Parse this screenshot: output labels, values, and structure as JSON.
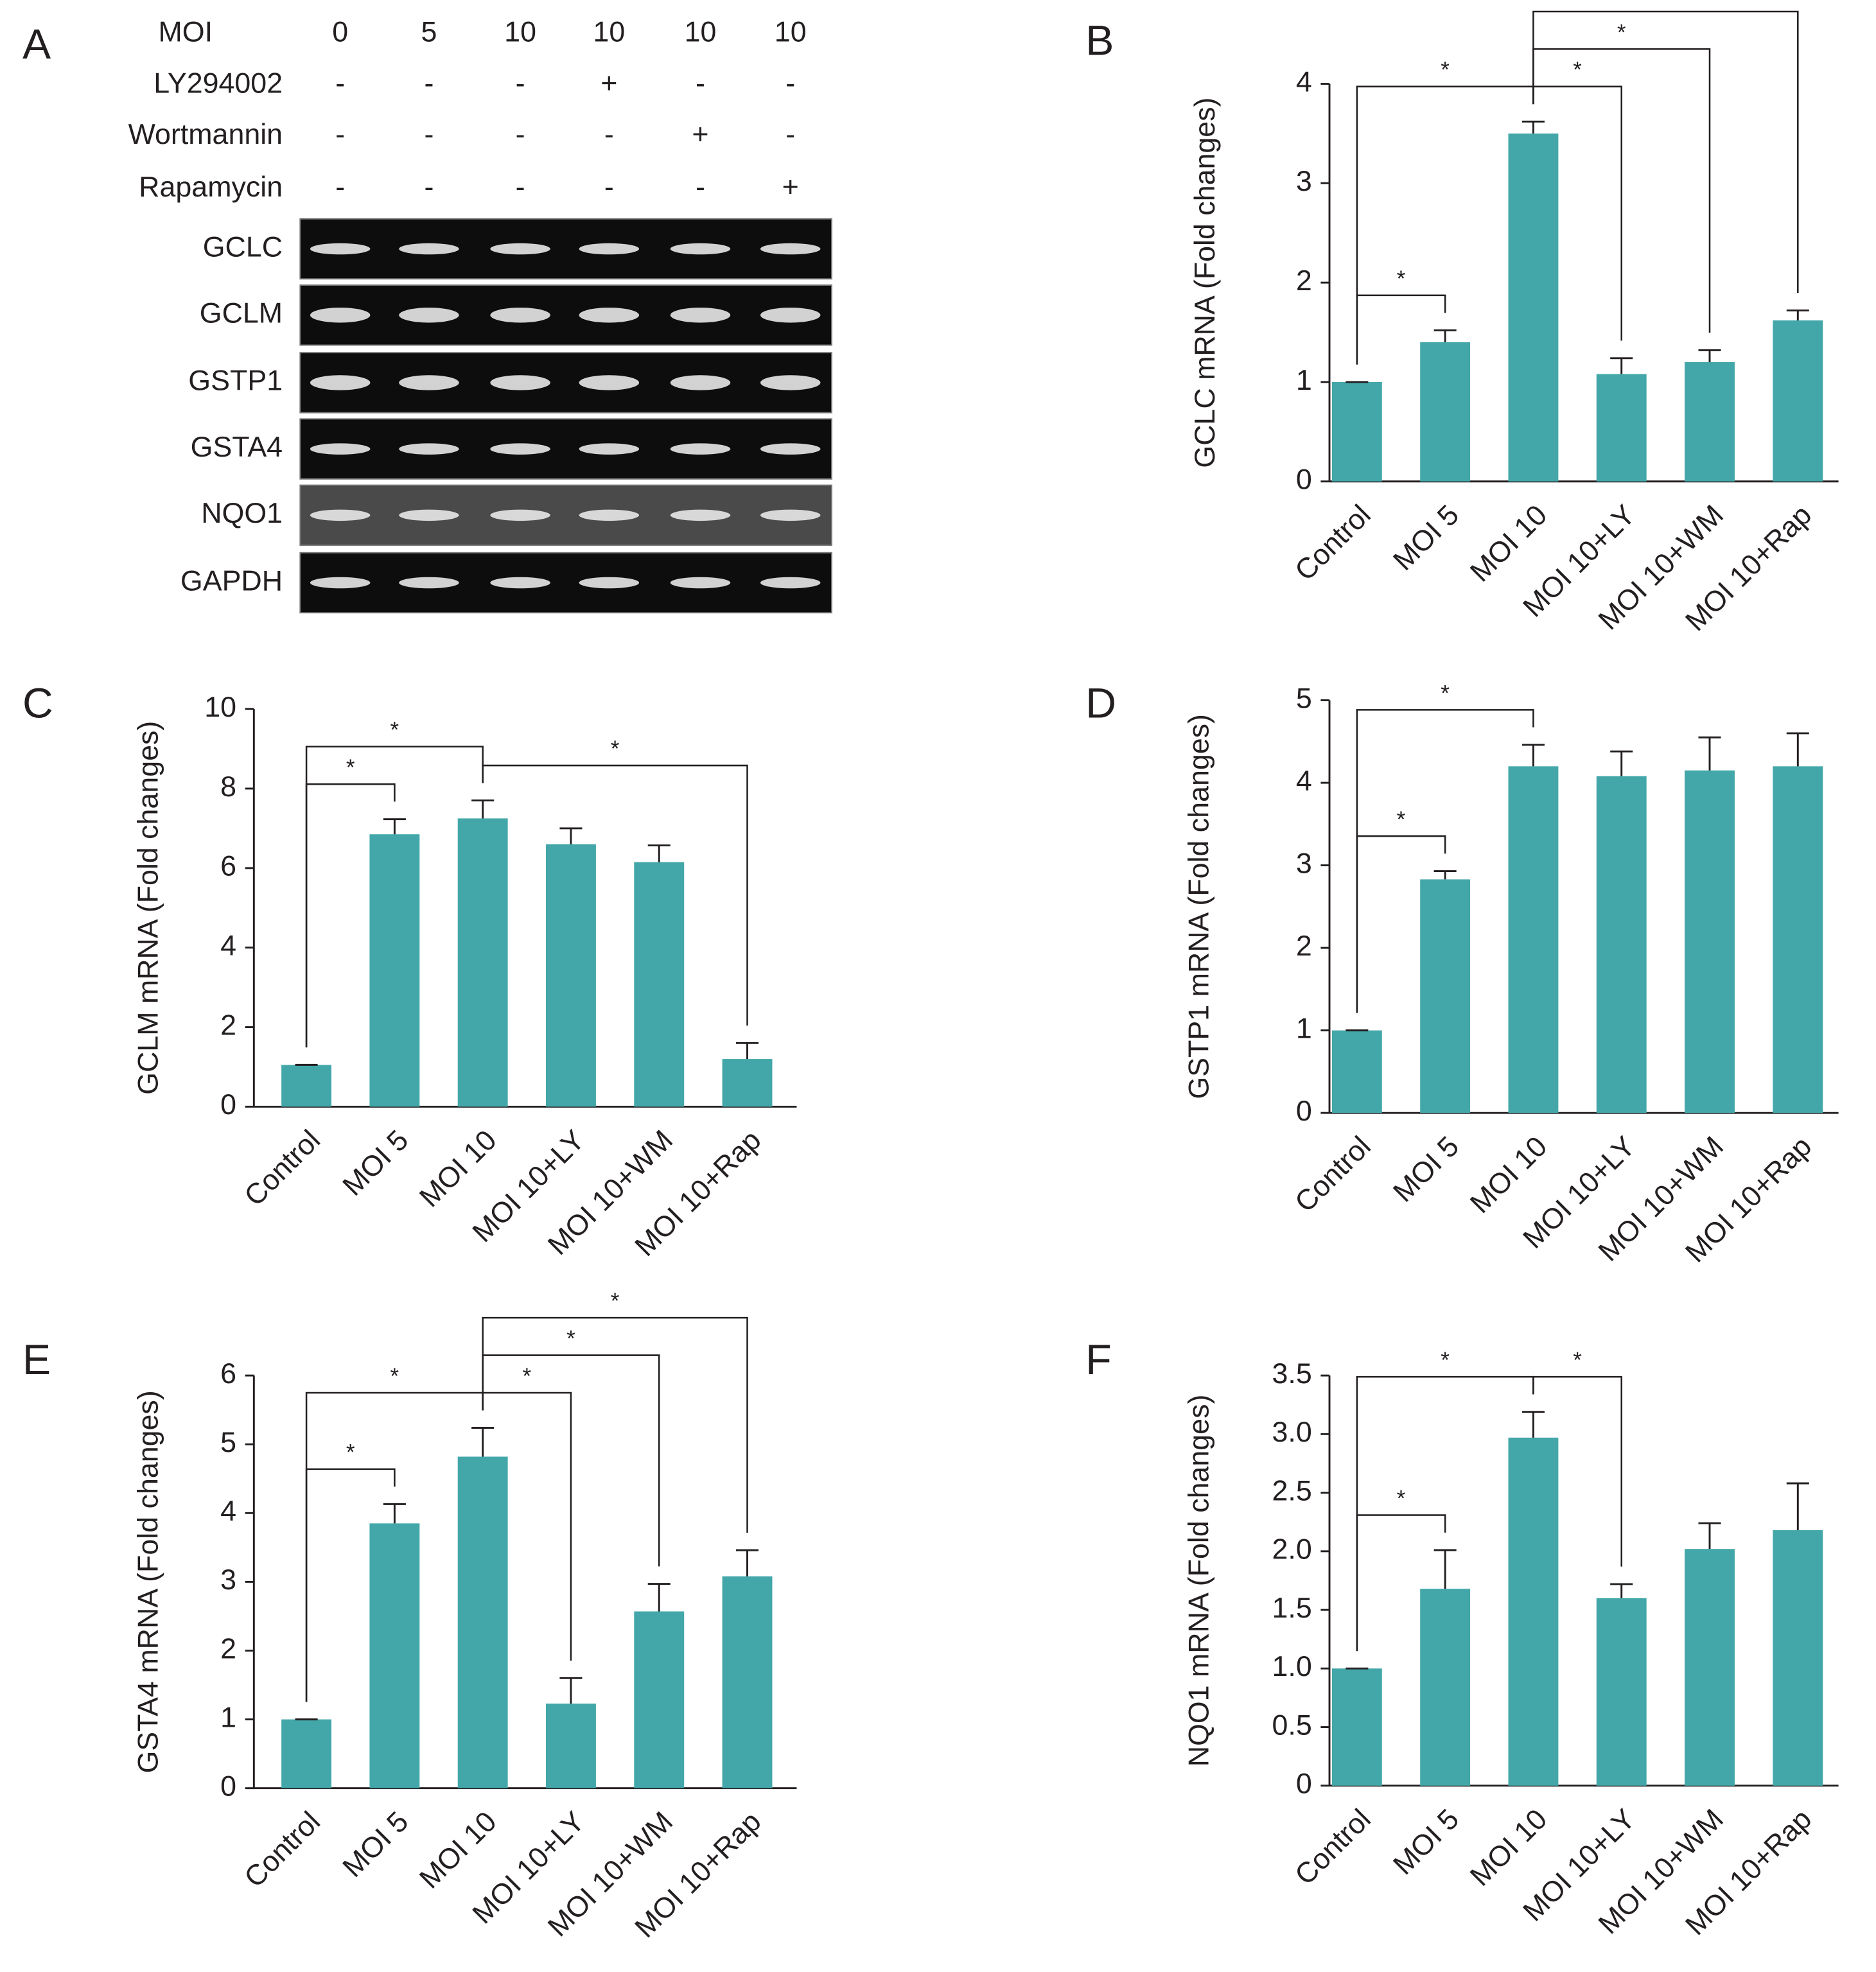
{
  "panel_a": {
    "panel_label": "A",
    "conditions": [
      {
        "name": "MOI",
        "values": [
          0,
          5,
          10,
          10,
          10,
          10
        ]
      },
      {
        "name": "LY294002",
        "values": [
          "-",
          "-",
          "-",
          "+",
          "-",
          "-"
        ]
      },
      {
        "name": "Wortmannin",
        "values": [
          "-",
          "-",
          "-",
          "-",
          "+",
          "-"
        ]
      },
      {
        "name": "Rapamycin",
        "values": [
          "-",
          "-",
          "-",
          "-",
          "-",
          "+"
        ]
      }
    ],
    "rows": [
      "GCLC",
      "GCLM",
      "GSTP1",
      "GSTA4",
      "NQO1",
      "GAPDH"
    ]
  },
  "chart_data": [
    {
      "type": "bar",
      "panel_label": "B",
      "ylabel": "GCLC mRNA (Fold changes)",
      "categories": [
        "Control",
        "MOI 5",
        "MOI 10",
        "MOI 10+LY",
        "MOI 10+WM",
        "MOI 10+Rap"
      ],
      "values": [
        1,
        1.4,
        3.5,
        1.08,
        1.2,
        1.62
      ],
      "errors": [
        0,
        0.12,
        0.12,
        0.16,
        0.12,
        0.1
      ],
      "color": "#43a7a9",
      "ylim": [
        0,
        4
      ],
      "yticks": [
        0,
        1,
        2,
        3,
        4
      ],
      "significance": [
        {
          "from": 0,
          "to": 1,
          "label": "*"
        },
        {
          "from": 0,
          "to": 2,
          "label": "*"
        },
        {
          "from": 2,
          "to": 3,
          "label": "*"
        },
        {
          "from": 2,
          "to": 4,
          "label": "*"
        },
        {
          "from": 2,
          "to": 5,
          "label": "*"
        }
      ]
    },
    {
      "type": "bar",
      "panel_label": "C",
      "ylabel": "GCLM mRNA (Fold changes)",
      "categories": [
        "Control",
        "MOI 5",
        "MOI 10",
        "MOI 10+LY",
        "MOI 10+WM",
        "MOI 10+Rap"
      ],
      "values": [
        1.05,
        6.85,
        7.25,
        6.6,
        6.15,
        1.2
      ],
      "errors": [
        0,
        0.38,
        0.45,
        0.4,
        0.42,
        0.4
      ],
      "color": "#43a7a9",
      "ylim": [
        0,
        10
      ],
      "yticks": [
        0,
        2,
        4,
        6,
        8,
        10
      ],
      "significance": [
        {
          "from": 0,
          "to": 1,
          "label": "*"
        },
        {
          "from": 0,
          "to": 2,
          "label": "*"
        },
        {
          "from": 2,
          "to": 5,
          "label": "*"
        }
      ]
    },
    {
      "type": "bar",
      "panel_label": "D",
      "ylabel": "GSTP1 mRNA (Fold changes)",
      "categories": [
        "Control",
        "MOI 5",
        "MOI 10",
        "MOI 10+LY",
        "MOI 10+WM",
        "MOI 10+Rap"
      ],
      "values": [
        1,
        2.83,
        4.2,
        4.08,
        4.15,
        4.2
      ],
      "errors": [
        0,
        0.1,
        0.26,
        0.3,
        0.4,
        0.4
      ],
      "color": "#43a7a9",
      "ylim": [
        0,
        5
      ],
      "yticks": [
        0,
        1,
        2,
        3,
        4,
        5
      ],
      "significance": [
        {
          "from": 0,
          "to": 1,
          "label": "*"
        },
        {
          "from": 0,
          "to": 2,
          "label": "*"
        }
      ]
    },
    {
      "type": "bar",
      "panel_label": "E",
      "ylabel": "GSTA4 mRNA (Fold changes)",
      "categories": [
        "Control",
        "MOI 5",
        "MOI 10",
        "MOI 10+LY",
        "MOI 10+WM",
        "MOI 10+Rap"
      ],
      "values": [
        1,
        3.85,
        4.82,
        1.23,
        2.57,
        3.08
      ],
      "errors": [
        0,
        0.28,
        0.42,
        0.37,
        0.4,
        0.38
      ],
      "color": "#43a7a9",
      "ylim": [
        0,
        6
      ],
      "yticks": [
        0,
        1,
        2,
        3,
        4,
        5,
        6
      ],
      "significance": [
        {
          "from": 0,
          "to": 1,
          "label": "*"
        },
        {
          "from": 0,
          "to": 2,
          "label": "*"
        },
        {
          "from": 2,
          "to": 3,
          "label": "*"
        },
        {
          "from": 2,
          "to": 4,
          "label": "*"
        },
        {
          "from": 2,
          "to": 5,
          "label": "*"
        }
      ]
    },
    {
      "type": "bar",
      "panel_label": "F",
      "ylabel": "NQO1 mRNA (Fold changes)",
      "categories": [
        "Control",
        "MOI 5",
        "MOI 10",
        "MOI 10+LY",
        "MOI 10+WM",
        "MOI 10+Rap"
      ],
      "values": [
        1,
        1.68,
        2.97,
        1.6,
        2.02,
        2.18
      ],
      "errors": [
        0,
        0.33,
        0.22,
        0.12,
        0.22,
        0.4
      ],
      "color": "#43a7a9",
      "ylim": [
        0,
        3.5
      ],
      "yticks": [
        0,
        0.5,
        {
          "value": 1,
          "label": "1.0"
        },
        1.5,
        {
          "value": 2,
          "label": "2.0"
        },
        2.5,
        {
          "value": 3,
          "label": "3.0"
        },
        3.5
      ],
      "significance": [
        {
          "from": 0,
          "to": 1,
          "label": "*"
        },
        {
          "from": 0,
          "to": 2,
          "label": "*"
        },
        {
          "from": 2,
          "to": 3,
          "label": "*"
        }
      ]
    }
  ]
}
